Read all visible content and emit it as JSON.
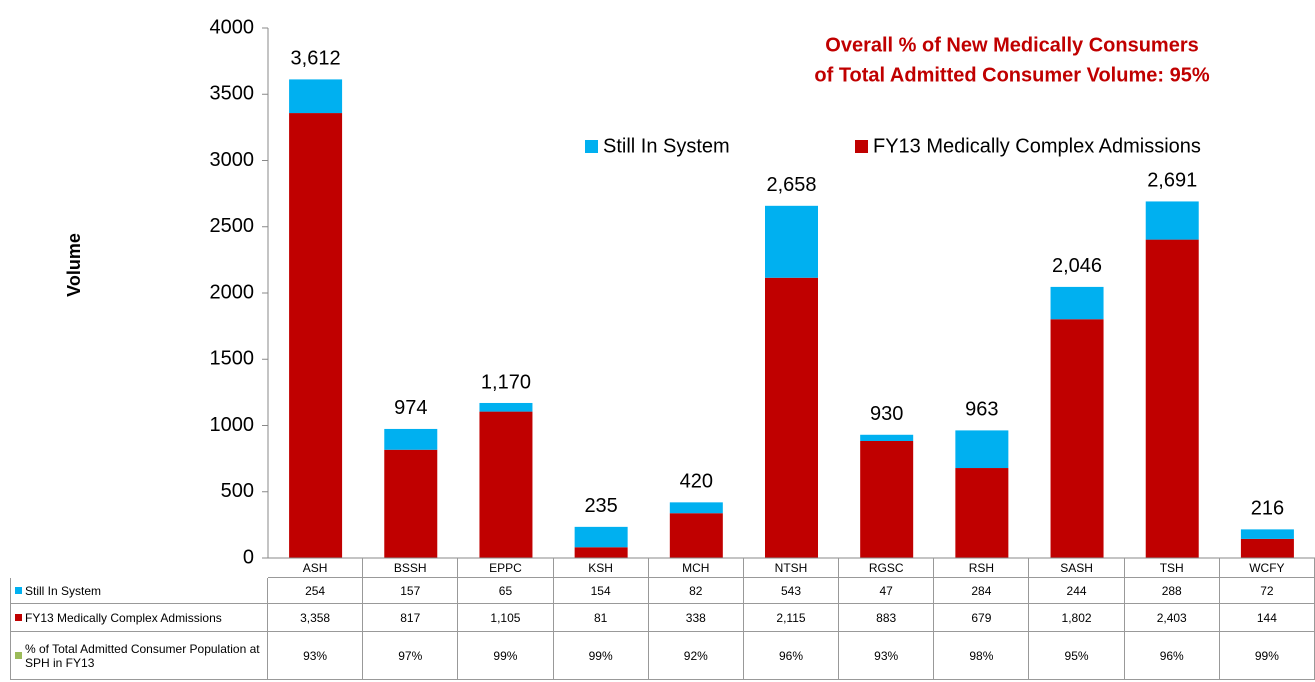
{
  "chart_data": {
    "type": "stacked_bar",
    "title": [
      "Overall % of New Medically Consumers",
      "of Total Admitted Consumer Volume: 95%"
    ],
    "y_label": "Volume",
    "categories": [
      "ASH",
      "BSSH",
      "EPPC",
      "KSH",
      "MCH",
      "NTSH",
      "RGSC",
      "RSH",
      "SASH",
      "TSH",
      "WCFY"
    ],
    "series": [
      {
        "name": "Still In System",
        "color": "#00b0f0",
        "values": [
          254,
          157,
          65,
          154,
          82,
          543,
          47,
          284,
          244,
          288,
          72
        ]
      },
      {
        "name": "FY13 Medically Complex Admissions",
        "color": "#c00000",
        "values": [
          3358,
          817,
          1105,
          81,
          338,
          2115,
          883,
          679,
          1802,
          2403,
          144
        ],
        "value_labels": [
          "3,358",
          "817",
          "1,105",
          "81",
          "338",
          "2,115",
          "883",
          "679",
          "1,802",
          "2,403",
          "144"
        ]
      }
    ],
    "table_only_series": {
      "name": "% of Total Admitted Consumer Population at SPH in FY13",
      "color": "#9bbb59",
      "values": [
        93,
        97,
        99,
        99,
        92,
        96,
        93,
        98,
        95,
        96,
        99
      ],
      "value_labels": [
        "93%",
        "97%",
        "99%",
        "99%",
        "92%",
        "96%",
        "93%",
        "98%",
        "95%",
        "96%",
        "99%"
      ]
    },
    "totals": {
      "values": [
        3612,
        974,
        1170,
        235,
        420,
        2658,
        930,
        963,
        2046,
        2691,
        216
      ],
      "value_labels": [
        "3,612",
        "974",
        "1,170",
        "235",
        "420",
        "2,658",
        "930",
        "963",
        "2,046",
        "2,691",
        "216"
      ]
    },
    "ylim": [
      0,
      4000
    ],
    "yticks": [
      0,
      500,
      1000,
      1500,
      2000,
      2500,
      3000,
      3500,
      4000
    ]
  }
}
